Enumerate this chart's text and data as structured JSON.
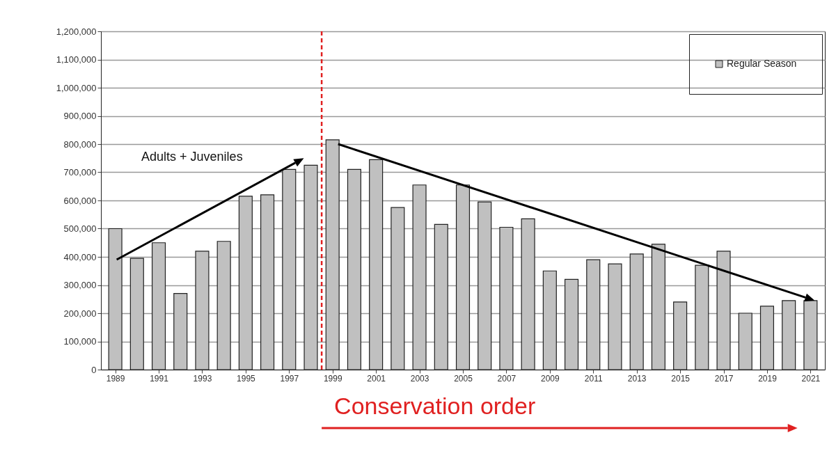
{
  "chart_data": {
    "type": "bar",
    "x": [
      1989,
      1990,
      1991,
      1992,
      1993,
      1994,
      1995,
      1996,
      1997,
      1998,
      1999,
      2000,
      2001,
      2002,
      2003,
      2004,
      2005,
      2006,
      2007,
      2008,
      2009,
      2010,
      2011,
      2012,
      2013,
      2014,
      2015,
      2016,
      2017,
      2018,
      2019,
      2020,
      2021
    ],
    "series": [
      {
        "name": "Regular Season",
        "color": "#c0c0c0",
        "values": [
          500000,
          395000,
          450000,
          270000,
          420000,
          455000,
          615000,
          620000,
          710000,
          725000,
          815000,
          710000,
          745000,
          575000,
          655000,
          515000,
          655000,
          595000,
          505000,
          535000,
          350000,
          320000,
          390000,
          375000,
          410000,
          445000,
          240000,
          370000,
          420000,
          200000,
          225000,
          245000,
          245000
        ]
      }
    ],
    "xlim": [
      1988.5,
      2021.5
    ],
    "xticks": [
      1989,
      1991,
      1993,
      1995,
      1997,
      1999,
      2001,
      2003,
      2005,
      2007,
      2009,
      2011,
      2013,
      2015,
      2017,
      2019,
      2021
    ],
    "ylim": [
      0,
      1200000
    ],
    "yticks": [
      0,
      {
        "value": 100000,
        "label": "100,000"
      },
      {
        "value": 200000,
        "label": "200,000"
      },
      {
        "value": 300000,
        "label": "300,000"
      },
      {
        "value": 400000,
        "label": "400,000"
      },
      {
        "value": 500000,
        "label": "500,000"
      },
      {
        "value": 600000,
        "label": "600,000"
      },
      {
        "value": 700000,
        "label": "700,000"
      },
      {
        "value": 800000,
        "label": "800,000"
      },
      {
        "value": 900000,
        "label": "900,000"
      },
      {
        "value": 1000000,
        "label": "1,000,000"
      },
      {
        "value": 1100000,
        "label": "1,100,000"
      },
      {
        "value": 1200000,
        "label": "1,200,000"
      }
    ],
    "grid": "y",
    "legend": "top right",
    "ref_lines": [
      {
        "axis": "x",
        "value": 1998.5,
        "color": "#e02020",
        "line_style": "dashed"
      }
    ],
    "annotations": [
      "Adults + Juveniles",
      "Conservation order"
    ]
  }
}
